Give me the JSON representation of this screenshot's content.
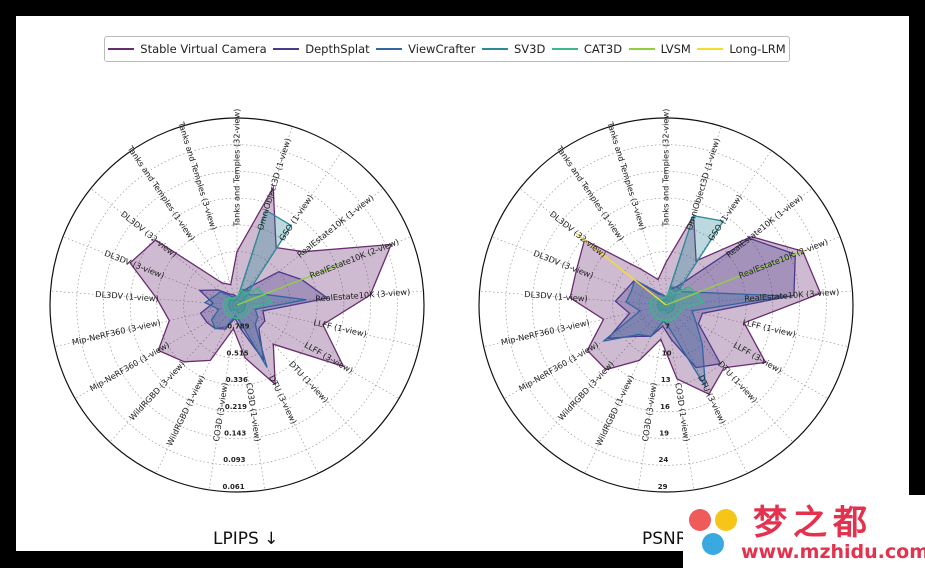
{
  "legend": {
    "items": [
      {
        "label": "Stable Virtual Camera",
        "color": "#6a2c70"
      },
      {
        "label": "DepthSplat",
        "color": "#4b3a8a"
      },
      {
        "label": "ViewCrafter",
        "color": "#3366a0"
      },
      {
        "label": "SV3D",
        "color": "#2a8a98"
      },
      {
        "label": "CAT3D",
        "color": "#3bb888"
      },
      {
        "label": "LVSM",
        "color": "#90d040"
      },
      {
        "label": "Long-LRM",
        "color": "#f5dc30"
      }
    ]
  },
  "axes": [
    "Tanks and Temples (32-view)",
    "OmniObject3D (1-view)",
    "GSO (1-view)",
    "RealEstate10K (1-view)",
    "RealEstate10K (2-view)",
    "RealEstate10K (3-view)",
    "LLFF (1-view)",
    "LLFF (3-view)",
    "DTU (1-view)",
    "DTU (3-view)",
    "CO3D (1-view)",
    "CO3D (3-view)",
    "WildRGBD (1-view)",
    "WildRGBD (3-view)",
    "Mip-NeRF360 (1-view)",
    "Mip-NeRF360 (3-view)",
    "DL3DV (1-view)",
    "DL3DV (3-view)",
    "DL3DV (32-view)",
    "Tanks and Temples (1-view)",
    "Tanks and Temples (3-view)"
  ],
  "chart_data": [
    {
      "type": "radar",
      "title": "LPIPS ↓",
      "ring_labels": [
        "0.789",
        "0.515",
        "0.336",
        "0.219",
        "0.143",
        "0.093",
        "0.061"
      ],
      "series": [
        {
          "name": "Stable Virtual Camera",
          "values": [
            2,
            4.6,
            2.6,
            3.2,
            6.2,
            5.0,
            3.3,
            4.6,
            2.0,
            3.3,
            2.0,
            0.9,
            2.3,
            2.9,
            3.4,
            2.6,
            3.0,
            4.3,
            3.9,
            1.0,
            0.8
          ]
        },
        {
          "name": "DepthSplat",
          "values": [
            0.3,
            0.5,
            0.8,
            2.0,
            2.6,
            3.4,
            1.0,
            1.2,
            1.2,
            2.3,
            0.9,
            0.5,
            1.0,
            1.2,
            1.3,
            1.4,
            0.9,
            1.5,
            0.9,
            0.5,
            0.4
          ]
        },
        {
          "name": "ViewCrafter",
          "values": [
            0.3,
            0.6,
            0.7,
            0.6,
            1.1,
            2.6,
            0.7,
            0.9,
            1.0,
            2.6,
            0.6,
            0.4,
            0.9,
            1.2,
            1.1,
            0.7,
            1.2,
            0.9,
            0.8,
            0.4,
            0.3
          ]
        },
        {
          "name": "SV3D",
          "values": [
            0.2,
            3.7,
            3.6,
            0.3,
            0.3,
            0.3,
            0.3,
            0.3,
            0.3,
            0.3,
            0.3,
            0.2,
            0.2,
            0.3,
            0.3,
            0.3,
            0.3,
            0.3,
            0.3,
            0.2,
            0.2
          ]
        },
        {
          "name": "CAT3D",
          "values": [
            0.3,
            0.6,
            0.5,
            1.0,
            1.1,
            1.3,
            0.5,
            0.5,
            0.5,
            0.5,
            0.5,
            0.5,
            0.5,
            0.5,
            0.5,
            0.5,
            0.5,
            0.5,
            0.4,
            0.3,
            0.3
          ]
        },
        {
          "name": "LVSM",
          "values": [
            0,
            0,
            0,
            0,
            4.3,
            0,
            0,
            0,
            0,
            0,
            0,
            0,
            0,
            0,
            0,
            0,
            0,
            0,
            0,
            0,
            0
          ]
        },
        {
          "name": "Long-LRM",
          "values": [
            0,
            0,
            0,
            0,
            0,
            0,
            0,
            0,
            0,
            0,
            0,
            0,
            0,
            0,
            0,
            0,
            0,
            0,
            0,
            0,
            0
          ]
        }
      ]
    },
    {
      "type": "radar",
      "title": "PSNR ↑",
      "ring_labels": [
        "7",
        "10",
        "13",
        "16",
        "19",
        "24",
        "29"
      ],
      "series": [
        {
          "name": "Stable Virtual Camera",
          "values": [
            1.6,
            3.5,
            2.0,
            4.1,
            5.5,
            5.8,
            3.0,
            4.3,
            3.2,
            3.7,
            2.8,
            1.3,
            2.3,
            3.3,
            3.4,
            2.4,
            3.6,
            3.6,
            3.9,
            1.6,
            1.0
          ]
        },
        {
          "name": "DepthSplat",
          "values": [
            0.3,
            0.6,
            0.9,
            4.0,
            5.2,
            4.8,
            1.4,
            1.4,
            3.0,
            2.6,
            1.3,
            0.8,
            1.3,
            1.6,
            2.5,
            1.4,
            1.9,
            1.6,
            1.5,
            0.5,
            0.4
          ]
        },
        {
          "name": "ViewCrafter",
          "values": [
            0.3,
            0.7,
            0.8,
            0.8,
            1.3,
            4.5,
            1.0,
            1.3,
            2.0,
            3.4,
            0.9,
            0.6,
            1.3,
            1.5,
            2.7,
            1.0,
            1.5,
            1.4,
            1.5,
            0.6,
            0.4
          ]
        },
        {
          "name": "SV3D",
          "values": [
            0.2,
            3.5,
            3.8,
            0.3,
            0.3,
            0.3,
            0.3,
            0.3,
            0.3,
            0.3,
            0.3,
            0.2,
            0.2,
            0.3,
            0.3,
            0.3,
            0.3,
            0.3,
            0.3,
            0.2,
            0.2
          ]
        },
        {
          "name": "CAT3D",
          "values": [
            0.3,
            0.6,
            0.5,
            1.1,
            1.2,
            1.4,
            0.6,
            0.6,
            0.6,
            0.6,
            0.6,
            0.6,
            0.6,
            0.6,
            0.6,
            0.6,
            0.6,
            0.6,
            0.5,
            0.3,
            0.3
          ]
        },
        {
          "name": "LVSM",
          "values": [
            0,
            0,
            0,
            0,
            5.6,
            0,
            0,
            0,
            0,
            0,
            0,
            0,
            0,
            0,
            0,
            0,
            0,
            0,
            0,
            0,
            0
          ]
        },
        {
          "name": "Long-LRM",
          "values": [
            0,
            0,
            0,
            0,
            0,
            0,
            0,
            0,
            0,
            0,
            0,
            0,
            0,
            0,
            0,
            0,
            0,
            0,
            4.3,
            0,
            0
          ]
        }
      ]
    }
  ],
  "subtitles": {
    "left": "LPIPS ↓",
    "right": "PSNR ↑"
  },
  "watermark": {
    "title": "梦之都",
    "url": "www.mzhidu.com"
  }
}
